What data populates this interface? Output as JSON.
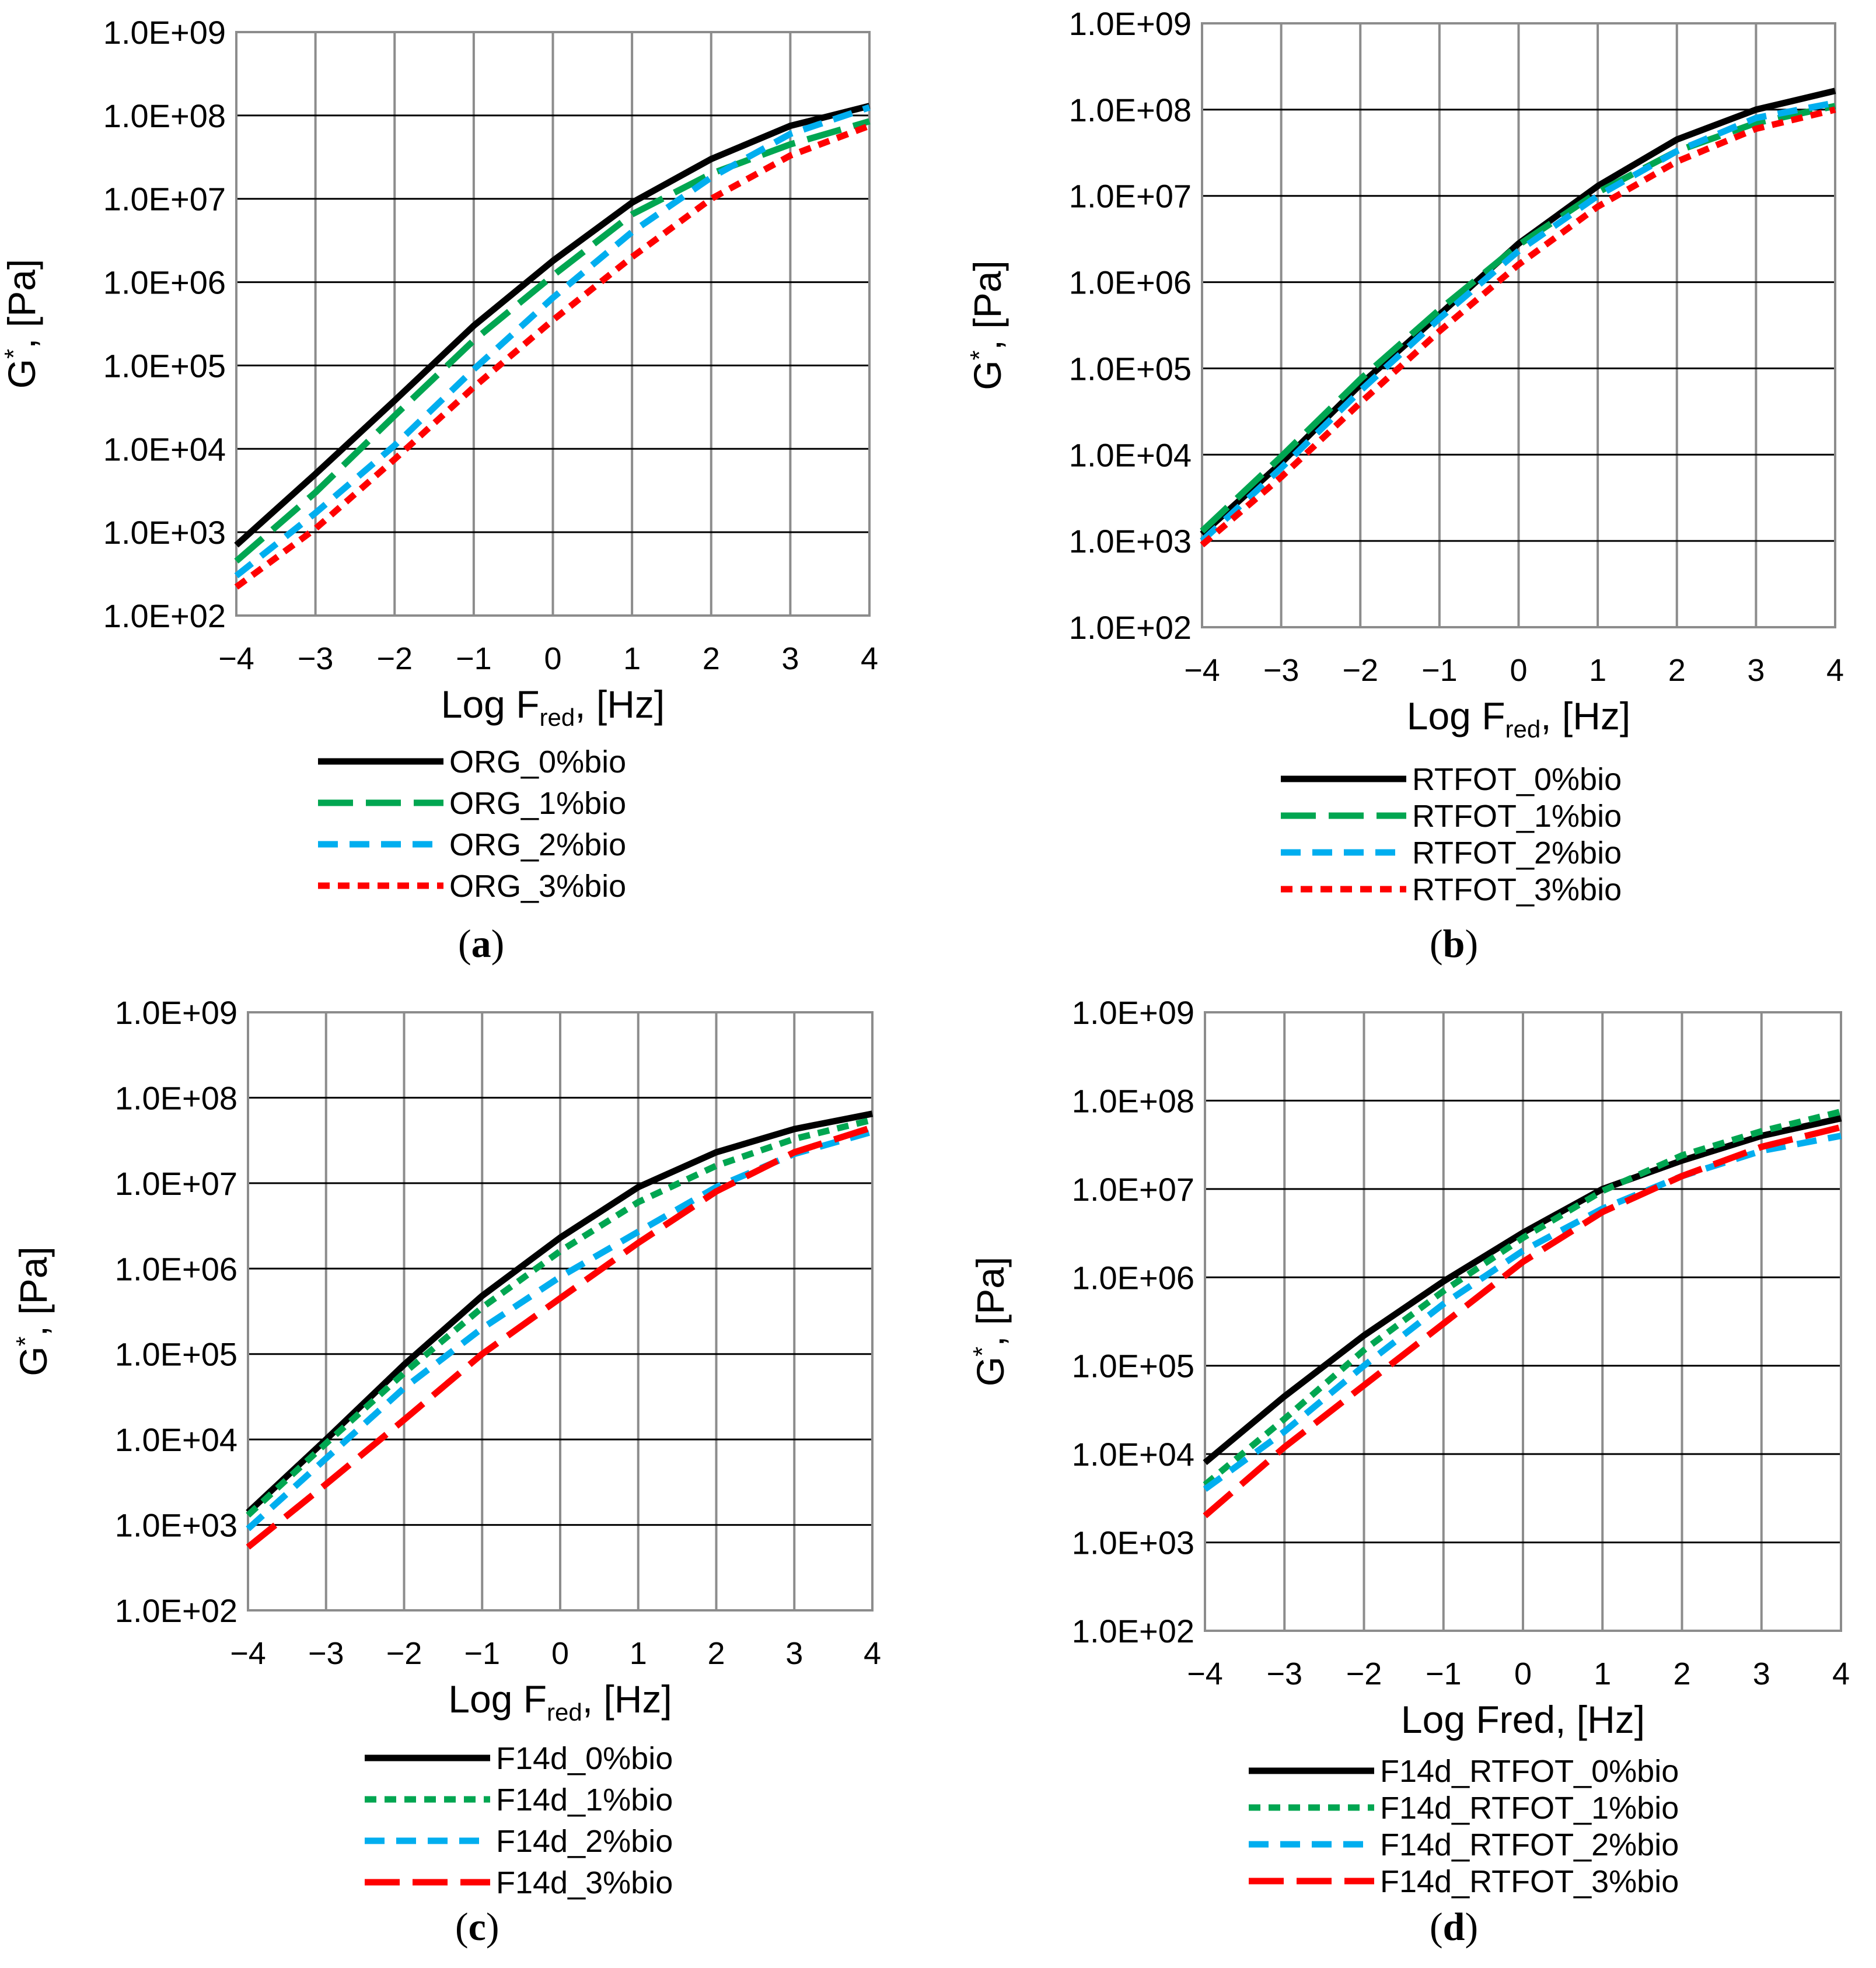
{
  "figure": {
    "panels": [
      {
        "id": "a",
        "caption": "(a)",
        "caption_letter": "a",
        "xlabel": "Log Fred, [Hz]",
        "xlabel_main": "Log F",
        "xlabel_sub": "red",
        "xlabel_tail": ", [Hz]",
        "ylabel": "G*, [Pa]",
        "ylabel_main": "G",
        "ylabel_sup": "*",
        "ylabel_tail": ", [Pa]"
      },
      {
        "id": "b",
        "caption": "(b)",
        "caption_letter": "b",
        "xlabel": "Log Fred, [Hz]",
        "xlabel_main": "Log F",
        "xlabel_sub": "red",
        "xlabel_tail": ", [Hz]",
        "ylabel": "G*, [Pa]",
        "ylabel_main": "G",
        "ylabel_sup": "*",
        "ylabel_tail": ", [Pa]"
      },
      {
        "id": "c",
        "caption": "(c)",
        "caption_letter": "c",
        "xlabel": "Log Fred, [Hz]",
        "xlabel_main": "Log F",
        "xlabel_sub": "red",
        "xlabel_tail": ", [Hz]",
        "ylabel": "G*, [Pa]",
        "ylabel_main": "G",
        "ylabel_sup": "*",
        "ylabel_tail": ", [Pa]"
      },
      {
        "id": "d",
        "caption": "(d)",
        "caption_letter": "d",
        "xlabel": "Log Fred, [Hz]",
        "xlabel_main": "Log Fred, [Hz]",
        "xlabel_sub": "",
        "xlabel_tail": "",
        "ylabel": "G*, [Pa]",
        "ylabel_main": "G",
        "ylabel_sup": "*",
        "ylabel_tail": ", [Pa]"
      }
    ]
  },
  "chart_data": [
    {
      "type": "line",
      "title": "(a)",
      "xlabel": "Log Fred, [Hz]",
      "ylabel": "G*, [Pa]",
      "yscale": "log",
      "xlim": [
        -4,
        4
      ],
      "ylim": [
        100,
        1000000000
      ],
      "xticks": [
        "−4",
        "−3",
        "−2",
        "−1",
        "0",
        "1",
        "2",
        "3",
        "4"
      ],
      "yticks": [
        "1.0E+02",
        "1.0E+03",
        "1.0E+04",
        "1.0E+05",
        "1.0E+06",
        "1.0E+07",
        "1.0E+08",
        "1.0E+09"
      ],
      "grid": true,
      "legend_position": "bottom",
      "x": [
        -4,
        -3,
        -2,
        -1,
        0,
        1,
        2,
        3,
        4
      ],
      "series": [
        {
          "name": "ORG_0%bio",
          "color": "#000000",
          "style": "solid",
          "values": [
            700,
            5000,
            38000,
            300000,
            1800000,
            9000000,
            30000000,
            75000000,
            130000000
          ]
        },
        {
          "name": "ORG_1%bio",
          "color": "#00A651",
          "style": "long-dash",
          "values": [
            450,
            3000,
            25000,
            200000,
            1200000,
            6500000,
            20000000,
            45000000,
            85000000
          ]
        },
        {
          "name": "ORG_2%bio",
          "color": "#00AEEF",
          "style": "dash",
          "values": [
            300,
            1700,
            11000,
            90000,
            650000,
            4000000,
            18000000,
            60000000,
            125000000
          ]
        },
        {
          "name": "ORG_3%bio",
          "color": "#FF0000",
          "style": "short-dash",
          "values": [
            220,
            1100,
            7500,
            55000,
            350000,
            2000000,
            10000000,
            33000000,
            75000000
          ]
        }
      ]
    },
    {
      "type": "line",
      "title": "(b)",
      "xlabel": "Log Fred, [Hz]",
      "ylabel": "G*, [Pa]",
      "yscale": "log",
      "xlim": [
        -4,
        4
      ],
      "ylim": [
        100,
        1000000000
      ],
      "xticks": [
        "−4",
        "−3",
        "−2",
        "−1",
        "0",
        "1",
        "2",
        "3",
        "4"
      ],
      "yticks": [
        "1.0E+02",
        "1.0E+03",
        "1.0E+04",
        "1.0E+05",
        "1.0E+06",
        "1.0E+07",
        "1.0E+08",
        "1.0E+09"
      ],
      "grid": true,
      "legend_position": "bottom",
      "x": [
        -4,
        -3,
        -2,
        -1,
        0,
        1,
        2,
        3,
        4
      ],
      "series": [
        {
          "name": "RTFOT_0%bio",
          "color": "#000000",
          "style": "solid",
          "values": [
            1200,
            8000,
            65000,
            420000,
            2800000,
            13000000,
            45000000,
            100000000,
            165000000
          ]
        },
        {
          "name": "RTFOT_1%bio",
          "color": "#00A651",
          "style": "long-dash",
          "values": [
            1300,
            9500,
            75000,
            480000,
            2700000,
            11000000,
            33000000,
            70000000,
            110000000
          ]
        },
        {
          "name": "RTFOT_2%bio",
          "color": "#00AEEF",
          "style": "dash",
          "values": [
            1000,
            7000,
            55000,
            380000,
            2300000,
            10000000,
            33000000,
            80000000,
            120000000
          ]
        },
        {
          "name": "RTFOT_3%bio",
          "color": "#FF0000",
          "style": "short-dash",
          "values": [
            900,
            5500,
            40000,
            270000,
            1600000,
            7500000,
            25000000,
            60000000,
            100000000
          ]
        }
      ]
    },
    {
      "type": "line",
      "title": "(c)",
      "xlabel": "Log Fred, [Hz]",
      "ylabel": "G*, [Pa]",
      "yscale": "log",
      "xlim": [
        -4,
        4
      ],
      "ylim": [
        100,
        1000000000
      ],
      "xticks": [
        "−4",
        "−3",
        "−2",
        "−1",
        "0",
        "1",
        "2",
        "3",
        "4"
      ],
      "yticks": [
        "1.0E+02",
        "1.0E+03",
        "1.0E+04",
        "1.0E+05",
        "1.0E+06",
        "1.0E+07",
        "1.0E+08",
        "1.0E+09"
      ],
      "grid": true,
      "legend_position": "bottom",
      "x": [
        -4,
        -3,
        -2,
        -1,
        0,
        1,
        2,
        3,
        4
      ],
      "series": [
        {
          "name": "F14d_0%bio",
          "color": "#000000",
          "style": "solid",
          "values": [
            1400,
            10000,
            75000,
            480000,
            2300000,
            9000000,
            23000000,
            43000000,
            65000000
          ]
        },
        {
          "name": "F14d_1%bio",
          "color": "#00A651",
          "style": "short-dash",
          "values": [
            1300,
            9000,
            60000,
            350000,
            1600000,
            6000000,
            16000000,
            33000000,
            55000000
          ]
        },
        {
          "name": "F14d_2%bio",
          "color": "#00AEEF",
          "style": "dash",
          "values": [
            900,
            6000,
            40000,
            200000,
            800000,
            2700000,
            9000000,
            22000000,
            40000000
          ]
        },
        {
          "name": "F14d_3%bio",
          "color": "#FF0000",
          "style": "long-dash",
          "values": [
            550,
            3000,
            17000,
            100000,
            450000,
            2000000,
            8000000,
            23000000,
            45000000
          ]
        }
      ]
    },
    {
      "type": "line",
      "title": "(d)",
      "xlabel": "Log Fred, [Hz]",
      "ylabel": "G*, [Pa]",
      "yscale": "log",
      "xlim": [
        -4,
        4
      ],
      "ylim": [
        100,
        1000000000
      ],
      "xticks": [
        "−4",
        "−3",
        "−2",
        "−1",
        "0",
        "1",
        "2",
        "3",
        "4"
      ],
      "yticks": [
        "1.0E+02",
        "1.0E+03",
        "1.0E+04",
        "1.0E+05",
        "1.0E+06",
        "1.0E+07",
        "1.0E+08",
        "1.0E+09"
      ],
      "grid": true,
      "legend_position": "bottom",
      "x": [
        -4,
        -3,
        -2,
        -1,
        0,
        1,
        2,
        3,
        4
      ],
      "series": [
        {
          "name": "F14d_RTFOT_0%bio",
          "color": "#000000",
          "style": "solid",
          "values": [
            8000,
            45000,
            220000,
            900000,
            3200000,
            10000000,
            21000000,
            40000000,
            63000000
          ]
        },
        {
          "name": "F14d_RTFOT_1%bio",
          "color": "#00A651",
          "style": "short-dash",
          "values": [
            4500,
            25000,
            150000,
            700000,
            2800000,
            9500000,
            24000000,
            45000000,
            75000000
          ]
        },
        {
          "name": "F14d_RTFOT_2%bio",
          "color": "#00AEEF",
          "style": "dash",
          "values": [
            4000,
            18000,
            100000,
            500000,
            2000000,
            6000000,
            14000000,
            27000000,
            40000000
          ]
        },
        {
          "name": "F14d_RTFOT_3%bio",
          "color": "#FF0000",
          "style": "long-dash",
          "values": [
            2000,
            12000,
            60000,
            300000,
            1500000,
            5500000,
            14000000,
            30000000,
            50000000
          ]
        }
      ]
    }
  ]
}
